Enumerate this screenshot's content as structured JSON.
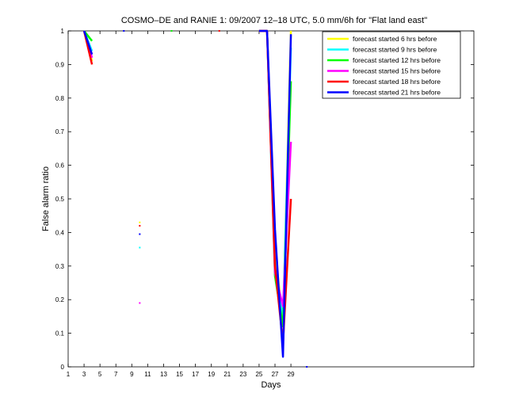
{
  "chart_data": {
    "type": "line",
    "title": "COSMO–DE and RANIE 1: 09/2007 12–18 UTC, 5.0 mm/6h for \"Flat land east\"",
    "xlabel": "Days",
    "ylabel": "False alarm ratio",
    "xlim": [
      1,
      52
    ],
    "ylim": [
      0,
      1
    ],
    "x_ticks": [
      1,
      3,
      5,
      7,
      9,
      11,
      13,
      15,
      17,
      19,
      21,
      23,
      25,
      27,
      29
    ],
    "x_tick_labels": [
      "1",
      "3",
      "5",
      "7",
      "9",
      "11",
      "13",
      "15",
      "17",
      "19",
      "21",
      "23",
      "25",
      "27",
      "29"
    ],
    "y_ticks": [
      0,
      0.1,
      0.2,
      0.3,
      0.4,
      0.5,
      0.6,
      0.7,
      0.8,
      0.9,
      1
    ],
    "y_tick_labels": [
      "0",
      "0.1",
      "0.2",
      "0.3",
      "0.4",
      "0.5",
      "0.6",
      "0.7",
      "0.8",
      "0.9",
      "1"
    ],
    "grid": false,
    "legend_position": "top-right",
    "series": [
      {
        "name": "forecast started 6 hrs before",
        "color": "#ffff00",
        "segments": [
          [
            [
              3,
              1.0
            ],
            [
              4,
              0.91
            ]
          ],
          [
            [
              25,
              1.0
            ],
            [
              26,
              1.0
            ],
            [
              27,
              0.35
            ],
            [
              28,
              0.13
            ],
            [
              29,
              1.0
            ]
          ]
        ],
        "points": [
          [
            10,
            0.43
          ],
          [
            14,
            1.0
          ]
        ]
      },
      {
        "name": "forecast started 9 hrs before",
        "color": "#00ffff",
        "segments": [
          [
            [
              3,
              1.0
            ],
            [
              4,
              0.94
            ]
          ],
          [
            [
              25,
              1.0
            ],
            [
              26,
              1.0
            ],
            [
              27,
              0.3
            ],
            [
              28,
              0.14
            ],
            [
              29,
              0.95
            ]
          ]
        ],
        "points": [
          [
            10,
            0.355
          ]
        ]
      },
      {
        "name": "forecast started 12 hrs before",
        "color": "#00ff00",
        "segments": [
          [
            [
              3,
              1.0
            ],
            [
              4,
              0.97
            ]
          ],
          [
            [
              25,
              1.0
            ],
            [
              26,
              1.0
            ],
            [
              27,
              0.27
            ],
            [
              28,
              0.12
            ],
            [
              29,
              0.85
            ]
          ]
        ],
        "points": [
          [
            14,
            1.0
          ]
        ]
      },
      {
        "name": "forecast started 15 hrs before",
        "color": "#ff00ff",
        "segments": [
          [
            [
              3,
              1.0
            ],
            [
              4,
              0.92
            ]
          ],
          [
            [
              25,
              1.0
            ],
            [
              26,
              1.0
            ],
            [
              27,
              0.28
            ],
            [
              28,
              0.18
            ],
            [
              29,
              0.67
            ]
          ]
        ],
        "points": [
          [
            10,
            0.19
          ]
        ]
      },
      {
        "name": "forecast started 18 hrs before",
        "color": "#ff0000",
        "segments": [
          [
            [
              3,
              1.0
            ],
            [
              4,
              0.9
            ]
          ],
          [
            [
              25,
              1.0
            ],
            [
              26,
              1.0
            ],
            [
              27,
              0.3
            ],
            [
              28,
              0.07
            ],
            [
              29,
              0.5
            ]
          ]
        ],
        "points": [
          [
            10,
            0.42
          ],
          [
            20,
            1.0
          ]
        ]
      },
      {
        "name": "forecast started 21 hrs before",
        "color": "#0000ff",
        "segments": [
          [
            [
              3,
              1.0
            ],
            [
              4,
              0.93
            ]
          ],
          [
            [
              25,
              1.0
            ],
            [
              26,
              1.0
            ],
            [
              27,
              0.41
            ],
            [
              28,
              0.03
            ],
            [
              29,
              0.99
            ]
          ]
        ],
        "points": [
          [
            10,
            0.395
          ],
          [
            8,
            1.0
          ],
          [
            31,
            0.0
          ]
        ]
      }
    ]
  }
}
